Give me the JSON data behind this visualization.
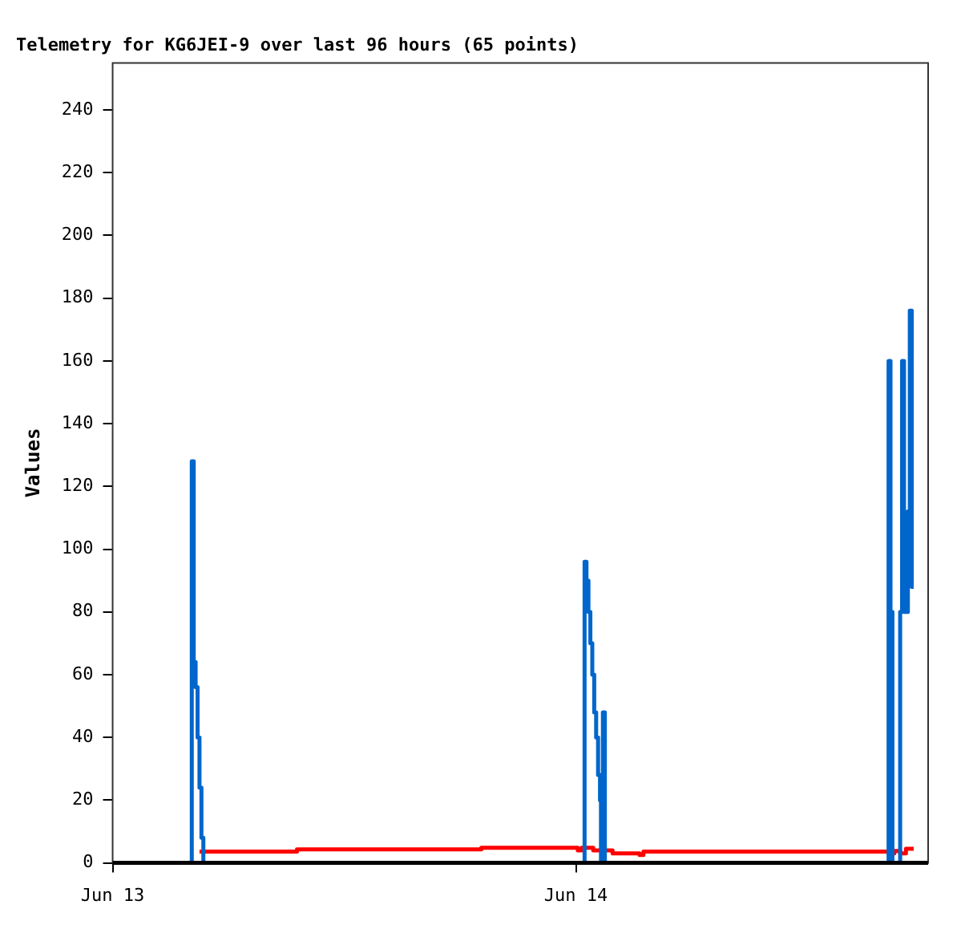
{
  "chart_data": {
    "type": "step",
    "title": "Telemetry for KG6JEI-9 over last 96 hours (65 points)",
    "ylabel": "Values",
    "xlim": [
      "--06-13",
      "--06-14T18:15"
    ],
    "xticks": [
      {
        "value": "--06-13",
        "label": "Jun 13"
      },
      {
        "value": "--06-14",
        "label": "Jun 14"
      }
    ],
    "ylim": [
      0,
      255
    ],
    "yticks": [
      0,
      20,
      40,
      60,
      80,
      100,
      120,
      140,
      160,
      180,
      200,
      220,
      240
    ],
    "grid": false,
    "legend": false,
    "series": [
      {
        "color": "#0066cc",
        "x": [
          "--06-13T04:00",
          "--06-13T04:06",
          "--06-13T04:12",
          "--06-13T04:18",
          "--06-13T04:24",
          "--06-13T04:30",
          "--06-13T04:36",
          "--06-13T04:42",
          "--06-14T00:21",
          "--06-14T00:27",
          "--06-14T00:33",
          "--06-14T00:39",
          "--06-14T00:45",
          "--06-14T00:51",
          "--06-14T00:57",
          "--06-14T01:03",
          "--06-14T01:09",
          "--06-14T01:15",
          "--06-14T01:18",
          "--06-14T01:24",
          "--06-14T01:30",
          "--06-14T16:12",
          "--06-14T16:18",
          "--06-14T16:24",
          "--06-14T16:48",
          "--06-14T16:54",
          "--06-14T17:00",
          "--06-14T17:06",
          "--06-14T17:12",
          "--06-14T17:18",
          "--06-14T17:24",
          "--06-14T17:30"
        ],
        "values": [
          0,
          128,
          64,
          56,
          40,
          24,
          8,
          0,
          0,
          96,
          90,
          80,
          70,
          60,
          48,
          40,
          28,
          20,
          0,
          48,
          0,
          160,
          80,
          0,
          80,
          160,
          80,
          80,
          112,
          176,
          88,
          88
        ]
      },
      {
        "color": "#ff0000",
        "x": [
          "--06-13T04:30",
          "--06-13T09:33",
          "--06-13T19:06",
          "--06-14T00:06",
          "--06-14T00:18",
          "--06-14T00:54",
          "--06-14T01:54",
          "--06-14T03:18",
          "--06-14T03:30",
          "--06-14T16:12",
          "--06-14T16:30",
          "--06-14T16:48",
          "--06-14T17:06",
          "--06-14T17:30"
        ],
        "values": [
          3.6,
          4.3,
          4.8,
          4.0,
          4.8,
          4.0,
          3.0,
          2.5,
          3.6,
          3.0,
          3.8,
          3.0,
          4.5,
          4.5
        ]
      }
    ]
  }
}
